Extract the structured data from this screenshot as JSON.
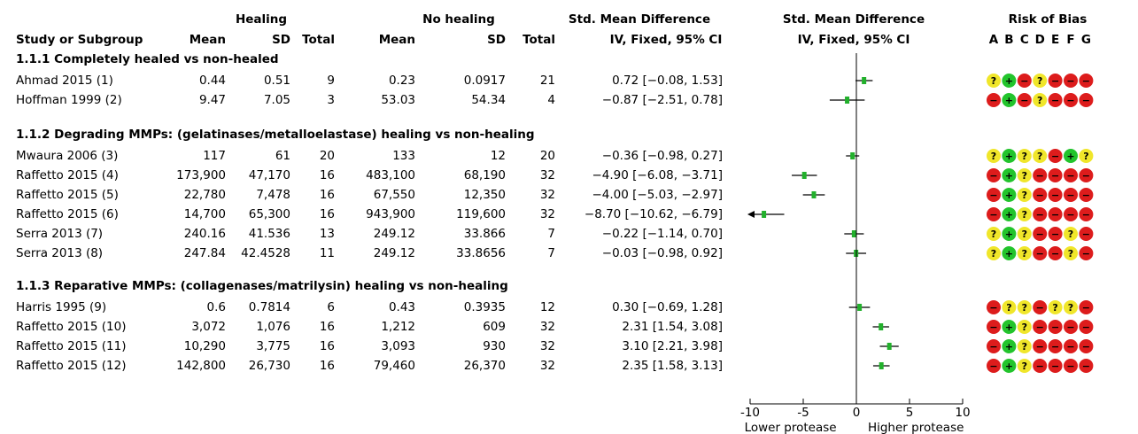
{
  "chart_data": {
    "type": "forest",
    "headers": {
      "healing": "Healing",
      "no_healing": "No healing",
      "smd": "Std. Mean Difference",
      "method": "IV, Fixed, 95% CI",
      "plot_smd": "Std. Mean Difference",
      "plot_method": "IV, Fixed, 95% CI",
      "rob": "Risk of Bias",
      "study": "Study or Subgroup",
      "mean1": "Mean",
      "sd1": "SD",
      "total1": "Total",
      "mean2": "Mean",
      "sd2": "SD",
      "total2": "Total"
    },
    "rob_domains": [
      "A",
      "B",
      "C",
      "D",
      "E",
      "F",
      "G"
    ],
    "xlim": [
      -10,
      10
    ],
    "xticks": [
      -10,
      -5,
      0,
      5,
      10
    ],
    "x_labels": [
      "Lower protease",
      "Higher protease"
    ],
    "color": "#22b02c",
    "groups": [
      {
        "title": "1.1.1 Completely healed vs non-healed",
        "rows": [
          {
            "study": "Ahmad 2015 (1)",
            "m1": 0.44,
            "sd1": 0.51,
            "n1": 9,
            "m2": 0.23,
            "sd2": 0.0917,
            "n2": 21,
            "value": 0.72,
            "lower": -0.08,
            "upper": 1.53,
            "value_label": "0.72 [−0.08, 1.53]",
            "rob": [
              "?",
              "+",
              "−",
              "?",
              "−",
              "−",
              "−"
            ]
          },
          {
            "study": "Hoffman 1999 (2)",
            "m1": 9.47,
            "sd1": 7.05,
            "n1": 3,
            "m2": 53.03,
            "sd2": 54.34,
            "n2": 4,
            "value": -0.87,
            "lower": -2.51,
            "upper": 0.78,
            "value_label": "−0.87 [−2.51, 0.78]",
            "rob": [
              "−",
              "+",
              "−",
              "?",
              "−",
              "−",
              "−"
            ]
          }
        ]
      },
      {
        "title": "1.1.2 Degrading MMPs: (gelatinases/metalloelastase) healing vs non-healing",
        "rows": [
          {
            "study": "Mwaura 2006 (3)",
            "m1": 117,
            "sd1": 61,
            "n1": 20,
            "m2": 133,
            "sd2": 12,
            "n2": 20,
            "value": -0.36,
            "lower": -0.98,
            "upper": 0.27,
            "value_label": "−0.36 [−0.98, 0.27]",
            "rob": [
              "?",
              "+",
              "?",
              "?",
              "−",
              "+",
              "?"
            ]
          },
          {
            "study": "Raffetto 2015 (4)",
            "m1": "173,900",
            "sd1": "47,170",
            "n1": 16,
            "m2": "483,100",
            "sd2": "68,190",
            "n2": 32,
            "value": -4.9,
            "lower": -6.08,
            "upper": -3.71,
            "value_label": "−4.90 [−6.08, −3.71]",
            "rob": [
              "−",
              "+",
              "?",
              "−",
              "−",
              "−",
              "−"
            ]
          },
          {
            "study": "Raffetto 2015 (5)",
            "m1": "22,780",
            "sd1": "7,478",
            "n1": 16,
            "m2": "67,550",
            "sd2": "12,350",
            "n2": 32,
            "value": -4.0,
            "lower": -5.03,
            "upper": -2.97,
            "value_label": "−4.00 [−5.03, −2.97]",
            "rob": [
              "−",
              "+",
              "?",
              "−",
              "−",
              "−",
              "−"
            ]
          },
          {
            "study": "Raffetto 2015 (6)",
            "m1": "14,700",
            "sd1": "65,300",
            "n1": 16,
            "m2": "943,900",
            "sd2": "119,600",
            "n2": 32,
            "value": -8.7,
            "lower": -10.62,
            "upper": -6.79,
            "value_label": "−8.70 [−10.62, −6.79]",
            "rob": [
              "−",
              "+",
              "?",
              "−",
              "−",
              "−",
              "−"
            ]
          },
          {
            "study": "Serra 2013 (7)",
            "m1": 240.16,
            "sd1": 41.536,
            "n1": 13,
            "m2": 249.12,
            "sd2": 33.866,
            "n2": 7,
            "value": -0.22,
            "lower": -1.14,
            "upper": 0.7,
            "value_label": "−0.22 [−1.14, 0.70]",
            "rob": [
              "?",
              "+",
              "?",
              "−",
              "−",
              "?",
              "−"
            ]
          },
          {
            "study": "Serra 2013 (8)",
            "m1": 247.84,
            "sd1": 42.4528,
            "n1": 11,
            "m2": 249.12,
            "sd2": 33.8656,
            "n2": 7,
            "value": -0.03,
            "lower": -0.98,
            "upper": 0.92,
            "value_label": "−0.03 [−0.98, 0.92]",
            "rob": [
              "?",
              "+",
              "?",
              "−",
              "−",
              "?",
              "−"
            ]
          }
        ]
      },
      {
        "title": "1.1.3 Reparative MMPs: (collagenases/matrilysin) healing vs non-healing",
        "rows": [
          {
            "study": "Harris 1995 (9)",
            "m1": 0.6,
            "sd1": 0.7814,
            "n1": 6,
            "m2": 0.43,
            "sd2": 0.3935,
            "n2": 12,
            "value": 0.3,
            "lower": -0.69,
            "upper": 1.28,
            "value_label": "0.30 [−0.69, 1.28]",
            "rob": [
              "−",
              "?",
              "?",
              "−",
              "?",
              "?",
              "−"
            ]
          },
          {
            "study": "Raffetto 2015 (10)",
            "m1": "3,072",
            "sd1": "1,076",
            "n1": 16,
            "m2": "1,212",
            "sd2": 609,
            "n2": 32,
            "value": 2.31,
            "lower": 1.54,
            "upper": 3.08,
            "value_label": "2.31 [1.54, 3.08]",
            "rob": [
              "−",
              "+",
              "?",
              "−",
              "−",
              "−",
              "−"
            ]
          },
          {
            "study": "Raffetto 2015 (11)",
            "m1": "10,290",
            "sd1": "3,775",
            "n1": 16,
            "m2": "3,093",
            "sd2": 930,
            "n2": 32,
            "value": 3.1,
            "lower": 2.21,
            "upper": 3.98,
            "value_label": "3.10 [2.21, 3.98]",
            "rob": [
              "−",
              "+",
              "?",
              "−",
              "−",
              "−",
              "−"
            ]
          },
          {
            "study": "Raffetto 2015 (12)",
            "m1": "142,800",
            "sd1": "26,730",
            "n1": 16,
            "m2": "79,460",
            "sd2": "26,370",
            "n2": 32,
            "value": 2.35,
            "lower": 1.58,
            "upper": 3.13,
            "value_label": "2.35 [1.58, 3.13]",
            "rob": [
              "−",
              "+",
              "?",
              "−",
              "−",
              "−",
              "−"
            ]
          }
        ]
      }
    ]
  }
}
